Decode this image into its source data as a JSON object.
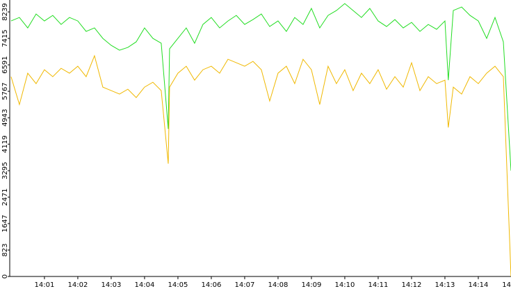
{
  "chart_data": {
    "type": "line",
    "x": [
      0,
      0.25,
      0.5,
      0.75,
      1,
      1.25,
      1.5,
      1.75,
      2,
      2.25,
      2.5,
      2.75,
      3,
      3.25,
      3.5,
      3.75,
      4,
      4.25,
      4.5,
      4.71,
      4.75,
      5,
      5.25,
      5.5,
      5.75,
      6,
      6.25,
      6.5,
      6.75,
      7,
      7.25,
      7.5,
      7.75,
      8,
      8.25,
      8.5,
      8.75,
      9,
      9.25,
      9.5,
      9.75,
      10,
      10.25,
      10.5,
      10.75,
      11,
      11.25,
      11.5,
      11.75,
      12,
      12.25,
      12.5,
      12.75,
      13,
      13.1,
      13.25,
      13.5,
      13.75,
      14,
      14.25,
      14.5,
      14.75,
      14.98
    ],
    "series": [
      {
        "color": "#22dd22",
        "values": [
          7957,
          8065,
          7740,
          8173,
          7957,
          8130,
          7848,
          8065,
          7957,
          7631,
          7740,
          7415,
          7198,
          7046,
          7133,
          7306,
          7740,
          7415,
          7263,
          4596,
          7089,
          7415,
          7740,
          7263,
          7848,
          8065,
          7740,
          7957,
          8130,
          7848,
          8000,
          8173,
          7783,
          7957,
          7631,
          8065,
          7848,
          8347,
          7740,
          8130,
          8282,
          8499,
          8282,
          8065,
          8347,
          7957,
          7783,
          8000,
          7740,
          7914,
          7631,
          7848,
          7696,
          7957,
          6114,
          8282,
          8390,
          8130,
          7957,
          7415,
          8065,
          7306,
          3295
        ]
      },
      {
        "color": "#f0b800",
        "values": [
          6222,
          5355,
          6331,
          6005,
          6439,
          6222,
          6482,
          6331,
          6547,
          6222,
          6873,
          5897,
          5789,
          5680,
          5832,
          5572,
          5897,
          6049,
          5789,
          3512,
          5897,
          6331,
          6547,
          6114,
          6439,
          6547,
          6331,
          6764,
          6656,
          6547,
          6699,
          6439,
          5463,
          6331,
          6547,
          6005,
          6764,
          6439,
          5355,
          6547,
          6005,
          6439,
          5789,
          6331,
          6005,
          6439,
          5832,
          6222,
          5897,
          6656,
          5789,
          6222,
          6005,
          6114,
          4640,
          5897,
          5680,
          6222,
          6005,
          6331,
          6547,
          6222,
          0
        ]
      }
    ],
    "xlim": [
      -0.04,
      14.98
    ],
    "xticks": [
      {
        "value": 1,
        "label": "14:01"
      },
      {
        "value": 2,
        "label": "14:02"
      },
      {
        "value": 3,
        "label": "14:03"
      },
      {
        "value": 4,
        "label": "14:04"
      },
      {
        "value": 5,
        "label": "14:05"
      },
      {
        "value": 6,
        "label": "14:06"
      },
      {
        "value": 7,
        "label": "14:07"
      },
      {
        "value": 8,
        "label": "14:08"
      },
      {
        "value": 9,
        "label": "14:09"
      },
      {
        "value": 10,
        "label": "14:10"
      },
      {
        "value": 11,
        "label": "14:11"
      },
      {
        "value": 12,
        "label": "14:12"
      },
      {
        "value": 13,
        "label": "14:13"
      },
      {
        "value": 14,
        "label": "14:14"
      },
      {
        "value": 15,
        "label": "14"
      }
    ],
    "ylim": [
      0,
      8610
    ],
    "yticks": [
      0,
      823,
      1647,
      2471,
      3295,
      4119,
      4943,
      5767,
      6591,
      7415,
      8239
    ]
  }
}
